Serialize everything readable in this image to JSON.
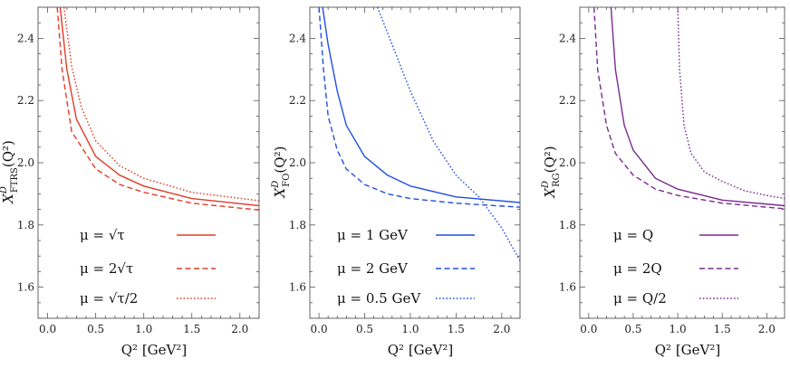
{
  "chart_data": [
    {
      "type": "line",
      "panel": "FTRS",
      "xlabel": "Q² [GeV²]",
      "ylabel": "X^D_FTRS(Q²)",
      "ylabel_sym": "X",
      "ylabel_sup": "D",
      "ylabel_sub": "FTRS",
      "ylabel_tail": "(Q²)",
      "xlim": [
        -0.1,
        2.2
      ],
      "ylim": [
        1.5,
        2.5
      ],
      "xticks": [
        0.0,
        0.5,
        1.0,
        1.5,
        2.0
      ],
      "xtick_labels": [
        "0.0",
        "0.5",
        "1.0",
        "1.5",
        "2.0"
      ],
      "yticks": [
        1.6,
        1.8,
        2.0,
        2.2,
        2.4
      ],
      "ytick_labels": [
        "1.6",
        "1.8",
        "2.0",
        "2.2",
        "2.4"
      ],
      "series": [
        {
          "name": "μ = √τ",
          "color": "#e03c28",
          "style": "solid",
          "points": [
            [
              0.13,
              2.5
            ],
            [
              0.2,
              2.3
            ],
            [
              0.3,
              2.14
            ],
            [
              0.5,
              2.02
            ],
            [
              0.75,
              1.96
            ],
            [
              1.0,
              1.925
            ],
            [
              1.5,
              1.885
            ],
            [
              2.2,
              1.862
            ]
          ]
        },
        {
          "name": "μ = 2√τ",
          "color": "#e03c28",
          "style": "dashed",
          "points": [
            [
              0.1,
              2.5
            ],
            [
              0.15,
              2.3
            ],
            [
              0.25,
              2.1
            ],
            [
              0.5,
              1.98
            ],
            [
              0.75,
              1.93
            ],
            [
              1.0,
              1.905
            ],
            [
              1.5,
              1.87
            ],
            [
              2.2,
              1.848
            ]
          ]
        },
        {
          "name": "μ = √τ/2",
          "color": "#e03c28",
          "style": "dotted",
          "points": [
            [
              0.17,
              2.5
            ],
            [
              0.25,
              2.31
            ],
            [
              0.35,
              2.18
            ],
            [
              0.5,
              2.07
            ],
            [
              0.75,
              1.99
            ],
            [
              1.0,
              1.95
            ],
            [
              1.5,
              1.905
            ],
            [
              2.2,
              1.878
            ]
          ]
        }
      ]
    },
    {
      "type": "line",
      "panel": "FO",
      "xlabel": "Q² [GeV²]",
      "ylabel": "X^D_FO(Q²)",
      "ylabel_sym": "X",
      "ylabel_sup": "D",
      "ylabel_sub": "FO",
      "ylabel_tail": "(Q²)",
      "xlim": [
        -0.1,
        2.2
      ],
      "ylim": [
        1.5,
        2.5
      ],
      "xticks": [
        0.0,
        0.5,
        1.0,
        1.5,
        2.0
      ],
      "xtick_labels": [
        "0.0",
        "0.5",
        "1.0",
        "1.5",
        "2.0"
      ],
      "yticks": [
        1.6,
        1.8,
        2.0,
        2.2,
        2.4
      ],
      "ytick_labels": [
        "1.6",
        "1.8",
        "2.0",
        "2.2",
        "2.4"
      ],
      "series": [
        {
          "name": "μ = 1 GeV",
          "color": "#1f4fe0",
          "style": "solid",
          "points": [
            [
              0.04,
              2.5
            ],
            [
              0.1,
              2.38
            ],
            [
              0.2,
              2.23
            ],
            [
              0.3,
              2.12
            ],
            [
              0.5,
              2.02
            ],
            [
              0.75,
              1.96
            ],
            [
              1.0,
              1.925
            ],
            [
              1.5,
              1.89
            ],
            [
              2.2,
              1.872
            ]
          ]
        },
        {
          "name": "μ = 2 GeV",
          "color": "#1f4fe0",
          "style": "dashed",
          "points": [
            [
              0.0,
              2.5
            ],
            [
              0.05,
              2.3
            ],
            [
              0.1,
              2.15
            ],
            [
              0.2,
              2.04
            ],
            [
              0.3,
              1.98
            ],
            [
              0.5,
              1.93
            ],
            [
              0.75,
              1.9
            ],
            [
              1.0,
              1.885
            ],
            [
              1.5,
              1.87
            ],
            [
              2.2,
              1.857
            ]
          ]
        },
        {
          "name": "μ = 0.5 GeV",
          "color": "#1f4fe0",
          "style": "dotted",
          "points": [
            [
              0.64,
              2.5
            ],
            [
              0.8,
              2.38
            ],
            [
              1.0,
              2.23
            ],
            [
              1.25,
              2.07
            ],
            [
              1.5,
              1.96
            ],
            [
              1.75,
              1.89
            ],
            [
              2.0,
              1.79
            ],
            [
              2.2,
              1.685
            ]
          ]
        }
      ]
    },
    {
      "type": "line",
      "panel": "RG",
      "xlabel": "Q² [GeV²]",
      "ylabel": "X^D_RG(Q²)",
      "ylabel_sym": "X",
      "ylabel_sup": "D",
      "ylabel_sub": "RG",
      "ylabel_tail": "(Q²)",
      "xlim": [
        -0.1,
        2.2
      ],
      "ylim": [
        1.5,
        2.5
      ],
      "xticks": [
        0.0,
        0.5,
        1.0,
        1.5,
        2.0
      ],
      "xtick_labels": [
        "0.0",
        "0.5",
        "1.0",
        "1.5",
        "2.0"
      ],
      "yticks": [
        1.6,
        1.8,
        2.0,
        2.2,
        2.4
      ],
      "ytick_labels": [
        "1.6",
        "1.8",
        "2.0",
        "2.2",
        "2.4"
      ],
      "series": [
        {
          "name": "μ = Q",
          "color": "#7a2a90",
          "style": "solid",
          "points": [
            [
              0.25,
              2.5
            ],
            [
              0.3,
              2.3
            ],
            [
              0.4,
              2.12
            ],
            [
              0.5,
              2.04
            ],
            [
              0.75,
              1.95
            ],
            [
              1.0,
              1.915
            ],
            [
              1.5,
              1.88
            ],
            [
              2.2,
              1.862
            ]
          ]
        },
        {
          "name": "μ = 2Q",
          "color": "#7a2a90",
          "style": "dashed",
          "points": [
            [
              0.06,
              2.5
            ],
            [
              0.1,
              2.3
            ],
            [
              0.2,
              2.12
            ],
            [
              0.3,
              2.03
            ],
            [
              0.5,
              1.96
            ],
            [
              0.75,
              1.915
            ],
            [
              1.0,
              1.895
            ],
            [
              1.5,
              1.87
            ],
            [
              2.2,
              1.852
            ]
          ]
        },
        {
          "name": "μ = Q/2",
          "color": "#7a2a90",
          "style": "dotted",
          "points": [
            [
              1.0,
              2.5
            ],
            [
              1.02,
              2.3
            ],
            [
              1.07,
              2.12
            ],
            [
              1.15,
              2.03
            ],
            [
              1.3,
              1.97
            ],
            [
              1.5,
              1.94
            ],
            [
              1.75,
              1.91
            ],
            [
              2.0,
              1.895
            ],
            [
              2.2,
              1.885
            ]
          ]
        }
      ]
    }
  ]
}
